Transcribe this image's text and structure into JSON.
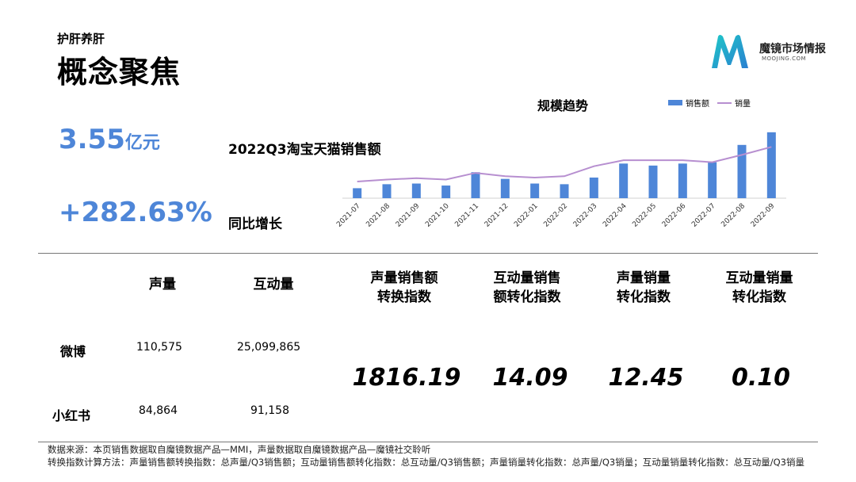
{
  "header": {
    "subtitle": "护肝养肝",
    "title": "概念聚焦"
  },
  "logo": {
    "name": "魔镜市场情报",
    "domain": "MOOJING.COM",
    "colors": [
      "#2a9fd6",
      "#1ec8c8",
      "#3a5fb8"
    ]
  },
  "kpis": {
    "sales_value": "3.55",
    "sales_unit": "亿元",
    "sales_label": "2022Q3淘宝天猫销售额",
    "growth_value": "+282.63%",
    "growth_label": "同比增长"
  },
  "chart_data": {
    "type": "bar",
    "title": "规模趋势",
    "categories": [
      "2021-07",
      "2021-08",
      "2021-09",
      "2021-10",
      "2021-11",
      "2021-12",
      "2022-01",
      "2022-02",
      "2022-03",
      "2022-04",
      "2022-05",
      "2022-06",
      "2022-07",
      "2022-08",
      "2022-09"
    ],
    "series": [
      {
        "name": "销售额",
        "kind": "bar",
        "color": "#4e86d8",
        "values": [
          15,
          21,
          22,
          19,
          39,
          29,
          22,
          21,
          31,
          52,
          49,
          52,
          54,
          80,
          99
        ]
      },
      {
        "name": "销量",
        "kind": "line",
        "color": "#b78fd0",
        "values": [
          25,
          28,
          30,
          28,
          38,
          33,
          31,
          33,
          48,
          57,
          57,
          57,
          54,
          65,
          77
        ]
      }
    ],
    "ylim": [
      0,
      100
    ],
    "grid": false,
    "legend": "top-right"
  },
  "table": {
    "headers": [
      [
        "声量"
      ],
      [
        "互动量"
      ],
      [
        "声量销售额",
        "转换指数"
      ],
      [
        "互动量销售",
        "额转化指数"
      ],
      [
        "声量销量",
        "转化指数"
      ],
      [
        "互动量销量",
        "转化指数"
      ]
    ],
    "rows": [
      {
        "label": "微博",
        "voice": "110,575",
        "interaction": "25,099,865"
      },
      {
        "label": "小红书",
        "voice": "84,864",
        "interaction": "91,158"
      }
    ],
    "indices": [
      "1816.19",
      "14.09",
      "12.45",
      "0.10"
    ]
  },
  "footer": {
    "line1": "数据来源：本页销售数据取自魔镜数据产品—MMI，声量数据取自魔镜数据产品—魔镜社交聆听",
    "line2": "转换指数计算方法：声量销售额转换指数：总声量/Q3销售额；互动量销售额转化指数：总互动量/Q3销售额；声量销量转化指数：总声量/Q3销量；互动量销量转化指数：总互动量/Q3销量"
  }
}
